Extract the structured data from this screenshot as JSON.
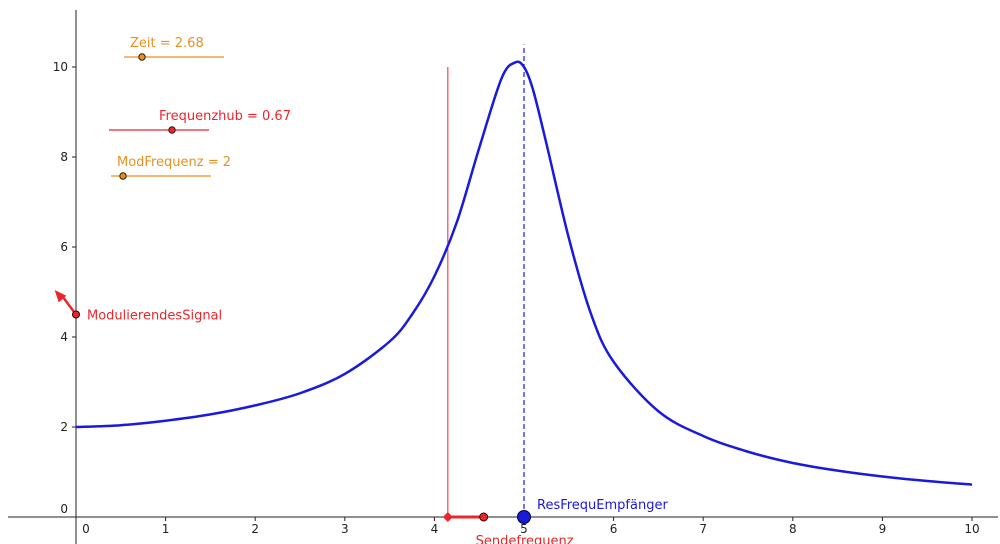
{
  "chart_data": {
    "type": "line",
    "xlim": [
      -0.1,
      10.3
    ],
    "ylim": [
      -0.25,
      11.4
    ],
    "x_ticks": [
      "0",
      "1",
      "2",
      "3",
      "4",
      "5",
      "6",
      "7",
      "8",
      "9",
      "10"
    ],
    "y_ticks": [
      "0",
      "2",
      "4",
      "6",
      "8",
      "10"
    ],
    "grid": false,
    "colors": {
      "curve": "#1a1adb",
      "signal": "#e8262b",
      "orange": "#e8901e",
      "axis": "#222222"
    },
    "series": [
      {
        "x": [
          0,
          0.5,
          1,
          1.5,
          2,
          2.5,
          3,
          3.5,
          3.75,
          4,
          4.25,
          4.5,
          4.75,
          4.9,
          5,
          5.1,
          5.25,
          5.5,
          5.75,
          6,
          6.5,
          7,
          7.5,
          8,
          8.5,
          9,
          9.5,
          10
        ],
        "values": [
          2.0,
          2.04,
          2.14,
          2.28,
          2.48,
          2.75,
          3.18,
          3.9,
          4.5,
          5.35,
          6.55,
          8.2,
          9.75,
          10.1,
          10.0,
          9.5,
          8.3,
          6.2,
          4.5,
          3.45,
          2.35,
          1.8,
          1.45,
          1.2,
          1.03,
          0.9,
          0.8,
          0.72
        ]
      }
    ],
    "vertical_lines": [
      {
        "x": 4.15,
        "y_top": 10,
        "style": "solid",
        "color": "signal"
      },
      {
        "x": 5.0,
        "y_top": 10.5,
        "style": "dashed",
        "color": "curve"
      }
    ],
    "points": [
      {
        "name": "ResFrequEmpfänger",
        "x": 5.0,
        "y": 0,
        "label": "ResFrequEmpfänger",
        "color": "curve"
      },
      {
        "name": "Sendefrequenz",
        "x": 4.55,
        "y": 0,
        "label": "Sendefrequenz",
        "color": "signal"
      },
      {
        "name": "Sendefrequenz-marker",
        "x": 4.15,
        "y": 0,
        "color": "signal"
      },
      {
        "name": "ModulierendesSignal",
        "x": 0,
        "y": 4.5,
        "label": "ModulierendesSignal",
        "color": "signal"
      }
    ],
    "segment": {
      "from": [
        4.15,
        0
      ],
      "to": [
        4.55,
        0
      ],
      "color": "signal"
    },
    "vector": {
      "from": [
        0,
        4.5
      ],
      "to": [
        -0.35,
        5.0
      ],
      "color": "signal"
    },
    "sliders": [
      {
        "label": "Zeit = 2.68",
        "value": 2.68,
        "fraction": 0.18,
        "color": "orange"
      },
      {
        "label": "Frequenzhub = 0.67",
        "value": 0.67,
        "fraction": 0.63,
        "color": "signal"
      },
      {
        "label": "ModFrequenz = 2",
        "value": 2,
        "fraction": 0.12,
        "color": "orange"
      }
    ]
  }
}
